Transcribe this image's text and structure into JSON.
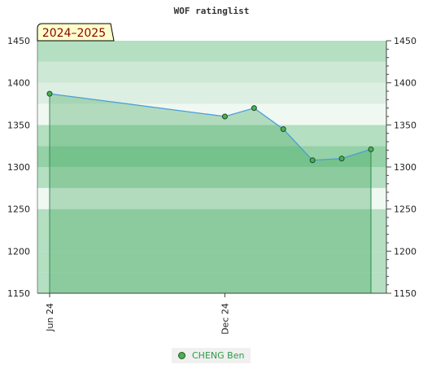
{
  "chart_data": {
    "type": "area",
    "title": "WOF ratinglist",
    "season_label": "2024–2025",
    "ylim": [
      1150,
      1450
    ],
    "y_ticks": [
      1450,
      1400,
      1350,
      1300,
      1250,
      1200,
      1150
    ],
    "x_tick_labels": [
      {
        "label": "Jun 24",
        "at": "2024-06"
      },
      {
        "label": "Dec 24",
        "at": "2024-12"
      }
    ],
    "series": [
      {
        "name": "CHENG Ben",
        "points": [
          {
            "x": "2024-06",
            "y": 1387
          },
          {
            "x": "2024-12",
            "y": 1360
          },
          {
            "x": "2025-01",
            "y": 1370
          },
          {
            "x": "2025-02",
            "y": 1345
          },
          {
            "x": "2025-03",
            "y": 1308
          },
          {
            "x": "2025-04",
            "y": 1310
          },
          {
            "x": "2025-05",
            "y": 1321
          }
        ]
      }
    ],
    "grid": true,
    "right_axis": true,
    "legend_position": "bottom-center",
    "colors": {
      "band_dark": "#7dc594",
      "band_mid": "#94d1a6",
      "band_light": "#b4dfc1",
      "band_pale": "#cde8d5",
      "band_paler": "#ddefe2",
      "band_palest": "#f0f8f2",
      "area_fill": "#3fa55f",
      "line": "#4a9ed6",
      "marker": "#4caf50",
      "season_bg": "#ffffcc"
    }
  },
  "legend": {
    "label": "CHENG Ben"
  }
}
